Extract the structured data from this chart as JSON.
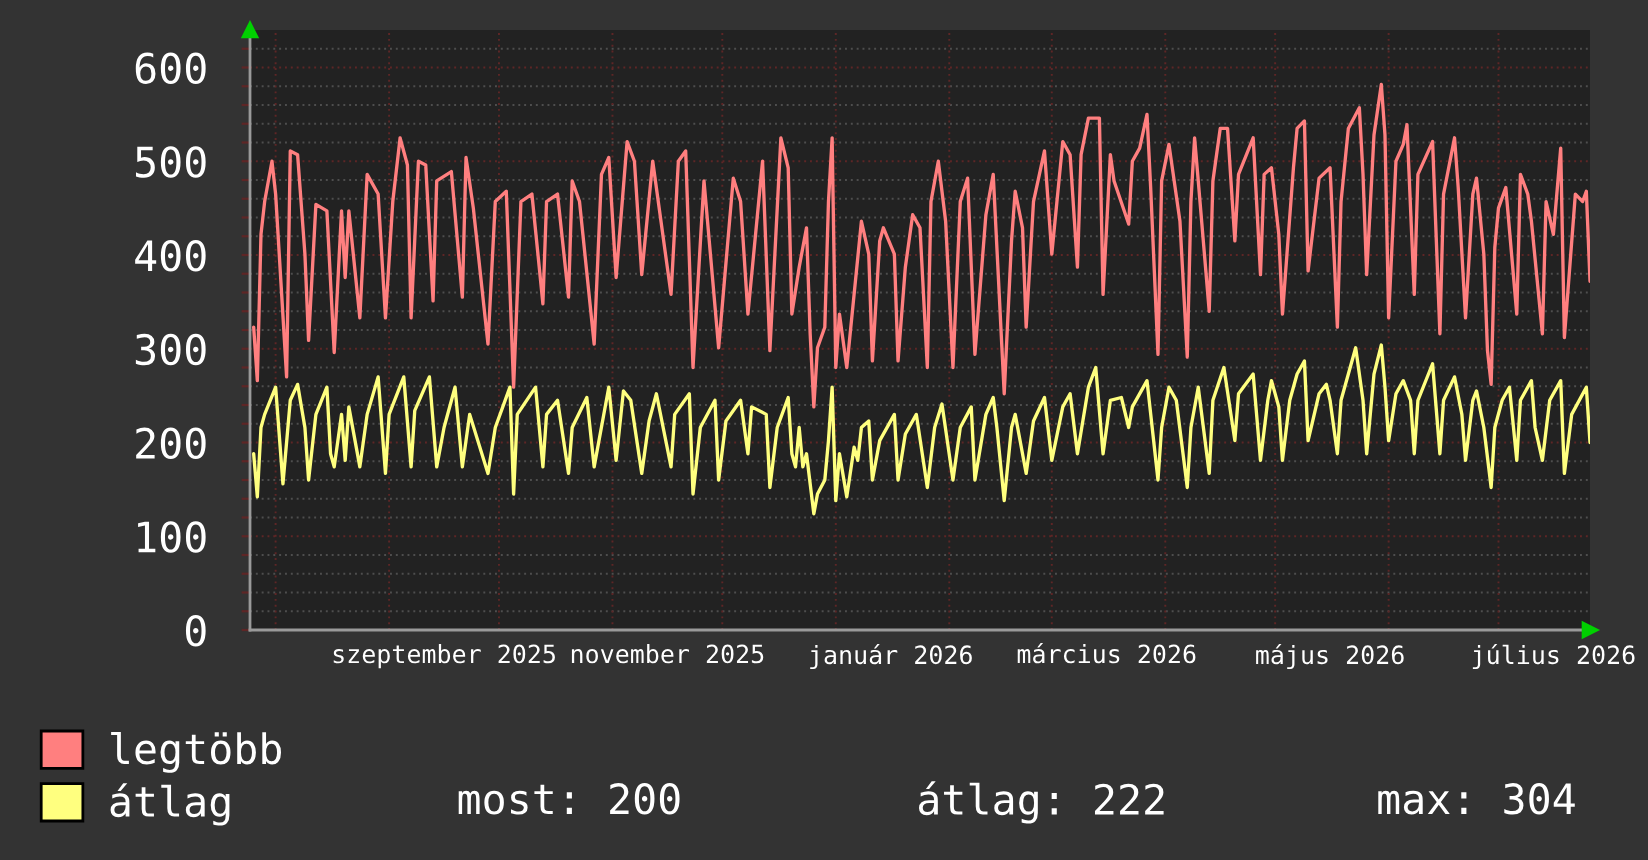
{
  "chart_data": {
    "type": "line",
    "xlim": [
      "2025-07-25",
      "2026-07-26"
    ],
    "xticks": [
      {
        "value": "2025-08-01",
        "label": null
      },
      {
        "value": "2025-09-01",
        "label": null
      },
      {
        "value": "2025-10-01",
        "label": null
      },
      {
        "value": "2025-11-01",
        "label": null
      },
      {
        "value": "2025-12-01",
        "label": null
      },
      {
        "value": "2026-01-01",
        "label": null
      },
      {
        "value": "2026-02-01",
        "label": null
      },
      {
        "value": "2026-03-01",
        "label": null
      },
      {
        "value": "2026-04-01",
        "label": null
      },
      {
        "value": "2026-05-01",
        "label": null
      },
      {
        "value": "2026-06-01",
        "label": null
      },
      {
        "value": "2026-07-01",
        "label": null
      },
      {
        "value": "2025-09-16",
        "label": "szeptember 2025"
      },
      {
        "value": "2025-11-16",
        "label": "november 2025"
      },
      {
        "value": "2026-01-16",
        "label": "január 2026"
      },
      {
        "value": "2026-03-16",
        "label": "március 2026"
      },
      {
        "value": "2026-05-16",
        "label": "május 2026"
      },
      {
        "value": "2026-07-16",
        "label": "július 2026"
      }
    ],
    "ylim": [
      0,
      640
    ],
    "yticks": [
      0,
      {
        "value": 20,
        "label": null
      },
      {
        "value": 40,
        "label": null
      },
      {
        "value": 60,
        "label": null
      },
      {
        "value": 80,
        "label": null
      },
      100,
      {
        "value": 120,
        "label": null
      },
      {
        "value": 140,
        "label": null
      },
      {
        "value": 160,
        "label": null
      },
      {
        "value": 180,
        "label": null
      },
      200,
      {
        "value": 220,
        "label": null
      },
      {
        "value": 240,
        "label": null
      },
      {
        "value": 260,
        "label": null
      },
      {
        "value": 280,
        "label": null
      },
      300,
      {
        "value": 320,
        "label": null
      },
      {
        "value": 340,
        "label": null
      },
      {
        "value": 360,
        "label": null
      },
      {
        "value": 380,
        "label": null
      },
      400,
      {
        "value": 420,
        "label": null
      },
      {
        "value": 440,
        "label": null
      },
      {
        "value": 460,
        "label": null
      },
      {
        "value": 480,
        "label": null
      },
      500,
      {
        "value": 520,
        "label": null
      },
      {
        "value": 540,
        "label": null
      },
      {
        "value": 560,
        "label": null
      },
      {
        "value": 580,
        "label": null
      },
      600,
      {
        "value": 620,
        "label": null
      }
    ],
    "grid": true,
    "legend": "bottom",
    "annotations": [
      "most: 200",
      "átlag: 222",
      "max: 304"
    ],
    "series": [
      {
        "name": "legtöbb",
        "color": "#ff7f7f",
        "x": [
          "2025-07-26",
          "2025-07-27",
          "2025-07-28",
          "2025-07-29",
          "2025-07-31",
          "2025-08-01",
          "2025-08-04",
          "2025-08-05",
          "2025-08-07",
          "2025-08-09",
          "2025-08-10",
          "2025-08-12",
          "2025-08-15",
          "2025-08-17",
          "2025-08-19",
          "2025-08-20",
          "2025-08-21",
          "2025-08-24",
          "2025-08-26",
          "2025-08-29",
          "2025-08-31",
          "2025-09-02",
          "2025-09-04",
          "2025-09-06",
          "2025-09-07",
          "2025-09-09",
          "2025-09-11",
          "2025-09-13",
          "2025-09-14",
          "2025-09-18",
          "2025-09-21",
          "2025-09-22",
          "2025-09-24",
          "2025-09-28",
          "2025-09-30",
          "2025-10-03",
          "2025-10-05",
          "2025-10-07",
          "2025-10-10",
          "2025-10-13",
          "2025-10-14",
          "2025-10-17",
          "2025-10-20",
          "2025-10-21",
          "2025-10-23",
          "2025-10-27",
          "2025-10-29",
          "2025-10-31",
          "2025-11-02",
          "2025-11-05",
          "2025-11-07",
          "2025-11-09",
          "2025-11-12",
          "2025-11-17",
          "2025-11-19",
          "2025-11-21",
          "2025-11-23",
          "2025-11-26",
          "2025-11-30",
          "2025-12-04",
          "2025-12-06",
          "2025-12-08",
          "2025-12-12",
          "2025-12-14",
          "2025-12-17",
          "2025-12-19",
          "2025-12-20",
          "2025-12-22",
          "2025-12-24",
          "2025-12-25",
          "2025-12-26",
          "2025-12-27",
          "2025-12-29",
          "2025-12-30",
          "2025-12-31",
          "2026-01-01",
          "2026-01-02",
          "2026-01-04",
          "2026-01-06",
          "2026-01-08",
          "2026-01-10",
          "2026-01-11",
          "2026-01-13",
          "2026-01-14",
          "2026-01-17",
          "2026-01-18",
          "2026-01-20",
          "2026-01-22",
          "2026-01-24",
          "2026-01-26",
          "2026-01-27",
          "2026-01-29",
          "2026-01-31",
          "2026-02-02",
          "2026-02-04",
          "2026-02-06",
          "2026-02-08",
          "2026-02-11",
          "2026-02-13",
          "2026-02-16",
          "2026-02-18",
          "2026-02-19",
          "2026-02-21",
          "2026-02-22",
          "2026-02-24",
          "2026-02-27",
          "2026-03-01",
          "2026-03-04",
          "2026-03-06",
          "2026-03-08",
          "2026-03-09",
          "2026-03-11",
          "2026-03-14",
          "2026-03-15",
          "2026-03-17",
          "2026-03-18",
          "2026-03-22",
          "2026-03-23",
          "2026-03-25",
          "2026-03-27",
          "2026-03-28",
          "2026-03-30",
          "2026-03-31",
          "2026-04-02",
          "2026-04-05",
          "2026-04-07",
          "2026-04-08",
          "2026-04-09",
          "2026-04-10",
          "2026-04-13",
          "2026-04-14",
          "2026-04-16",
          "2026-04-18",
          "2026-04-20",
          "2026-04-21",
          "2026-04-25",
          "2026-04-27",
          "2026-04-28",
          "2026-04-30",
          "2026-05-02",
          "2026-05-03",
          "2026-05-06",
          "2026-05-07",
          "2026-05-09",
          "2026-05-10",
          "2026-05-13",
          "2026-05-16",
          "2026-05-18",
          "2026-05-19",
          "2026-05-21",
          "2026-05-24",
          "2026-05-25",
          "2026-05-26",
          "2026-05-28",
          "2026-05-30",
          "2026-05-31",
          "2026-06-01",
          "2026-06-03",
          "2026-06-05",
          "2026-06-06",
          "2026-06-08",
          "2026-06-09",
          "2026-06-13",
          "2026-06-15",
          "2026-06-16",
          "2026-06-19",
          "2026-06-20",
          "2026-06-22",
          "2026-06-24",
          "2026-06-25",
          "2026-06-27",
          "2026-06-28",
          "2026-06-29",
          "2026-06-30",
          "2026-07-01",
          "2026-07-03",
          "2026-07-06",
          "2026-07-07",
          "2026-07-09",
          "2026-07-10",
          "2026-07-13",
          "2026-07-14",
          "2026-07-16",
          "2026-07-18",
          "2026-07-19",
          "2026-07-22",
          "2026-07-24",
          "2026-07-25",
          "2026-07-26"
        ],
        "values": [
          323,
          266,
          422,
          457,
          500,
          465,
          270,
          511,
          507,
          401,
          309,
          454,
          447,
          296,
          447,
          376,
          447,
          333,
          486,
          465,
          333,
          457,
          525,
          496,
          333,
          500,
          496,
          351,
          479,
          489,
          355,
          504,
          450,
          305,
          457,
          468,
          259,
          457,
          465,
          348,
          457,
          465,
          355,
          479,
          457,
          305,
          486,
          504,
          376,
          521,
          500,
          379,
          500,
          358,
          500,
          511,
          280,
          479,
          301,
          482,
          457,
          337,
          500,
          298,
          525,
          493,
          337,
          387,
          429,
          316,
          238,
          301,
          323,
          457,
          525,
          280,
          337,
          280,
          358,
          436,
          401,
          287,
          415,
          429,
          401,
          287,
          387,
          443,
          429,
          280,
          457,
          500,
          436,
          280,
          457,
          482,
          294,
          443,
          486,
          252,
          415,
          468,
          429,
          323,
          457,
          511,
          401,
          521,
          507,
          387,
          507,
          546,
          546,
          358,
          507,
          479,
          433,
          500,
          514,
          550,
          472,
          294,
          479,
          518,
          436,
          291,
          457,
          525,
          479,
          340,
          479,
          535,
          535,
          415,
          486,
          525,
          379,
          486,
          493,
          422,
          337,
          493,
          535,
          543,
          383,
          482,
          493,
          323,
          457,
          535,
          557,
          486,
          379,
          528,
          582,
          528,
          333,
          500,
          518,
          539,
          358,
          486,
          521,
          316,
          465,
          525,
          472,
          333,
          465,
          482,
          401,
          298,
          262,
          408,
          450,
          472,
          337,
          486,
          465,
          436,
          316,
          457,
          422,
          514,
          312,
          465,
          457,
          468,
          372
        ]
      },
      {
        "name": "átlag",
        "color": "#ffff7f",
        "x": [
          "2025-07-26",
          "2025-07-27",
          "2025-07-28",
          "2025-07-29",
          "2025-08-01",
          "2025-08-03",
          "2025-08-05",
          "2025-08-07",
          "2025-08-09",
          "2025-08-10",
          "2025-08-12",
          "2025-08-15",
          "2025-08-16",
          "2025-08-17",
          "2025-08-19",
          "2025-08-20",
          "2025-08-21",
          "2025-08-24",
          "2025-08-26",
          "2025-08-29",
          "2025-08-31",
          "2025-09-01",
          "2025-09-05",
          "2025-09-07",
          "2025-09-08",
          "2025-09-12",
          "2025-09-14",
          "2025-09-16",
          "2025-09-19",
          "2025-09-21",
          "2025-09-23",
          "2025-09-28",
          "2025-09-30",
          "2025-10-04",
          "2025-10-05",
          "2025-10-06",
          "2025-10-11",
          "2025-10-13",
          "2025-10-14",
          "2025-10-17",
          "2025-10-20",
          "2025-10-21",
          "2025-10-25",
          "2025-10-27",
          "2025-10-31",
          "2025-11-02",
          "2025-11-04",
          "2025-11-06",
          "2025-11-09",
          "2025-11-11",
          "2025-11-13",
          "2025-11-17",
          "2025-11-18",
          "2025-11-22",
          "2025-11-23",
          "2025-11-25",
          "2025-11-29",
          "2025-11-30",
          "2025-12-02",
          "2025-12-06",
          "2025-12-08",
          "2025-12-09",
          "2025-12-13",
          "2025-12-14",
          "2025-12-16",
          "2025-12-19",
          "2025-12-20",
          "2025-12-21",
          "2025-12-22",
          "2025-12-23",
          "2025-12-24",
          "2025-12-26",
          "2025-12-27",
          "2025-12-29",
          "2025-12-30",
          "2025-12-31",
          "2026-01-01",
          "2026-01-02",
          "2026-01-04",
          "2026-01-06",
          "2026-01-07",
          "2026-01-08",
          "2026-01-10",
          "2026-01-11",
          "2026-01-13",
          "2026-01-17",
          "2026-01-18",
          "2026-01-20",
          "2026-01-23",
          "2026-01-26",
          "2026-01-28",
          "2026-01-30",
          "2026-02-02",
          "2026-02-04",
          "2026-02-07",
          "2026-02-08",
          "2026-02-11",
          "2026-02-13",
          "2026-02-14",
          "2026-02-16",
          "2026-02-18",
          "2026-02-19",
          "2026-02-22",
          "2026-02-24",
          "2026-02-27",
          "2026-03-01",
          "2026-03-04",
          "2026-03-06",
          "2026-03-08",
          "2026-03-11",
          "2026-03-13",
          "2026-03-15",
          "2026-03-17",
          "2026-03-20",
          "2026-03-22",
          "2026-03-23",
          "2026-03-27",
          "2026-03-30",
          "2026-03-31",
          "2026-04-02",
          "2026-04-04",
          "2026-04-07",
          "2026-04-08",
          "2026-04-10",
          "2026-04-13",
          "2026-04-14",
          "2026-04-17",
          "2026-04-20",
          "2026-04-21",
          "2026-04-25",
          "2026-04-27",
          "2026-04-29",
          "2026-04-30",
          "2026-05-02",
          "2026-05-03",
          "2026-05-05",
          "2026-05-07",
          "2026-05-09",
          "2026-05-10",
          "2026-05-13",
          "2026-05-15",
          "2026-05-16",
          "2026-05-18",
          "2026-05-19",
          "2026-05-21",
          "2026-05-23",
          "2026-05-25",
          "2026-05-26",
          "2026-05-28",
          "2026-05-30",
          "2026-05-31",
          "2026-06-01",
          "2026-06-03",
          "2026-06-05",
          "2026-06-07",
          "2026-06-08",
          "2026-06-09",
          "2026-06-13",
          "2026-06-15",
          "2026-06-16",
          "2026-06-19",
          "2026-06-21",
          "2026-06-22",
          "2026-06-24",
          "2026-06-25",
          "2026-06-27",
          "2026-06-29",
          "2026-06-30",
          "2026-07-02",
          "2026-07-04",
          "2026-07-06",
          "2026-07-07",
          "2026-07-10",
          "2026-07-11",
          "2026-07-13",
          "2026-07-15",
          "2026-07-18",
          "2026-07-19",
          "2026-07-21",
          "2026-07-25",
          "2026-07-26"
        ],
        "values": [
          188,
          142,
          216,
          230,
          259,
          156,
          245,
          262,
          216,
          160,
          230,
          259,
          188,
          174,
          230,
          181,
          238,
          174,
          230,
          270,
          167,
          230,
          270,
          174,
          234,
          270,
          174,
          216,
          259,
          174,
          230,
          167,
          216,
          259,
          145,
          230,
          259,
          174,
          230,
          245,
          167,
          216,
          248,
          174,
          259,
          181,
          255,
          245,
          167,
          223,
          252,
          174,
          230,
          252,
          145,
          216,
          245,
          160,
          223,
          245,
          188,
          238,
          230,
          152,
          216,
          248,
          188,
          174,
          216,
          174,
          188,
          124,
          145,
          160,
          202,
          259,
          138,
          188,
          142,
          195,
          181,
          216,
          223,
          160,
          202,
          230,
          160,
          209,
          230,
          152,
          216,
          241,
          160,
          216,
          238,
          160,
          230,
          248,
          216,
          138,
          216,
          230,
          167,
          223,
          248,
          181,
          238,
          252,
          188,
          259,
          280,
          188,
          245,
          248,
          216,
          238,
          266,
          160,
          216,
          259,
          245,
          152,
          216,
          259,
          167,
          245,
          280,
          202,
          252,
          273,
          181,
          245,
          266,
          238,
          181,
          245,
          273,
          287,
          202,
          252,
          262,
          245,
          188,
          245,
          273,
          301,
          245,
          188,
          273,
          304,
          259,
          202,
          252,
          266,
          245,
          188,
          245,
          284,
          188,
          245,
          270,
          230,
          181,
          245,
          255,
          216,
          152,
          216,
          245,
          259,
          181,
          245,
          266,
          216,
          181,
          245,
          266,
          167,
          230,
          259,
          200
        ]
      }
    ]
  }
}
